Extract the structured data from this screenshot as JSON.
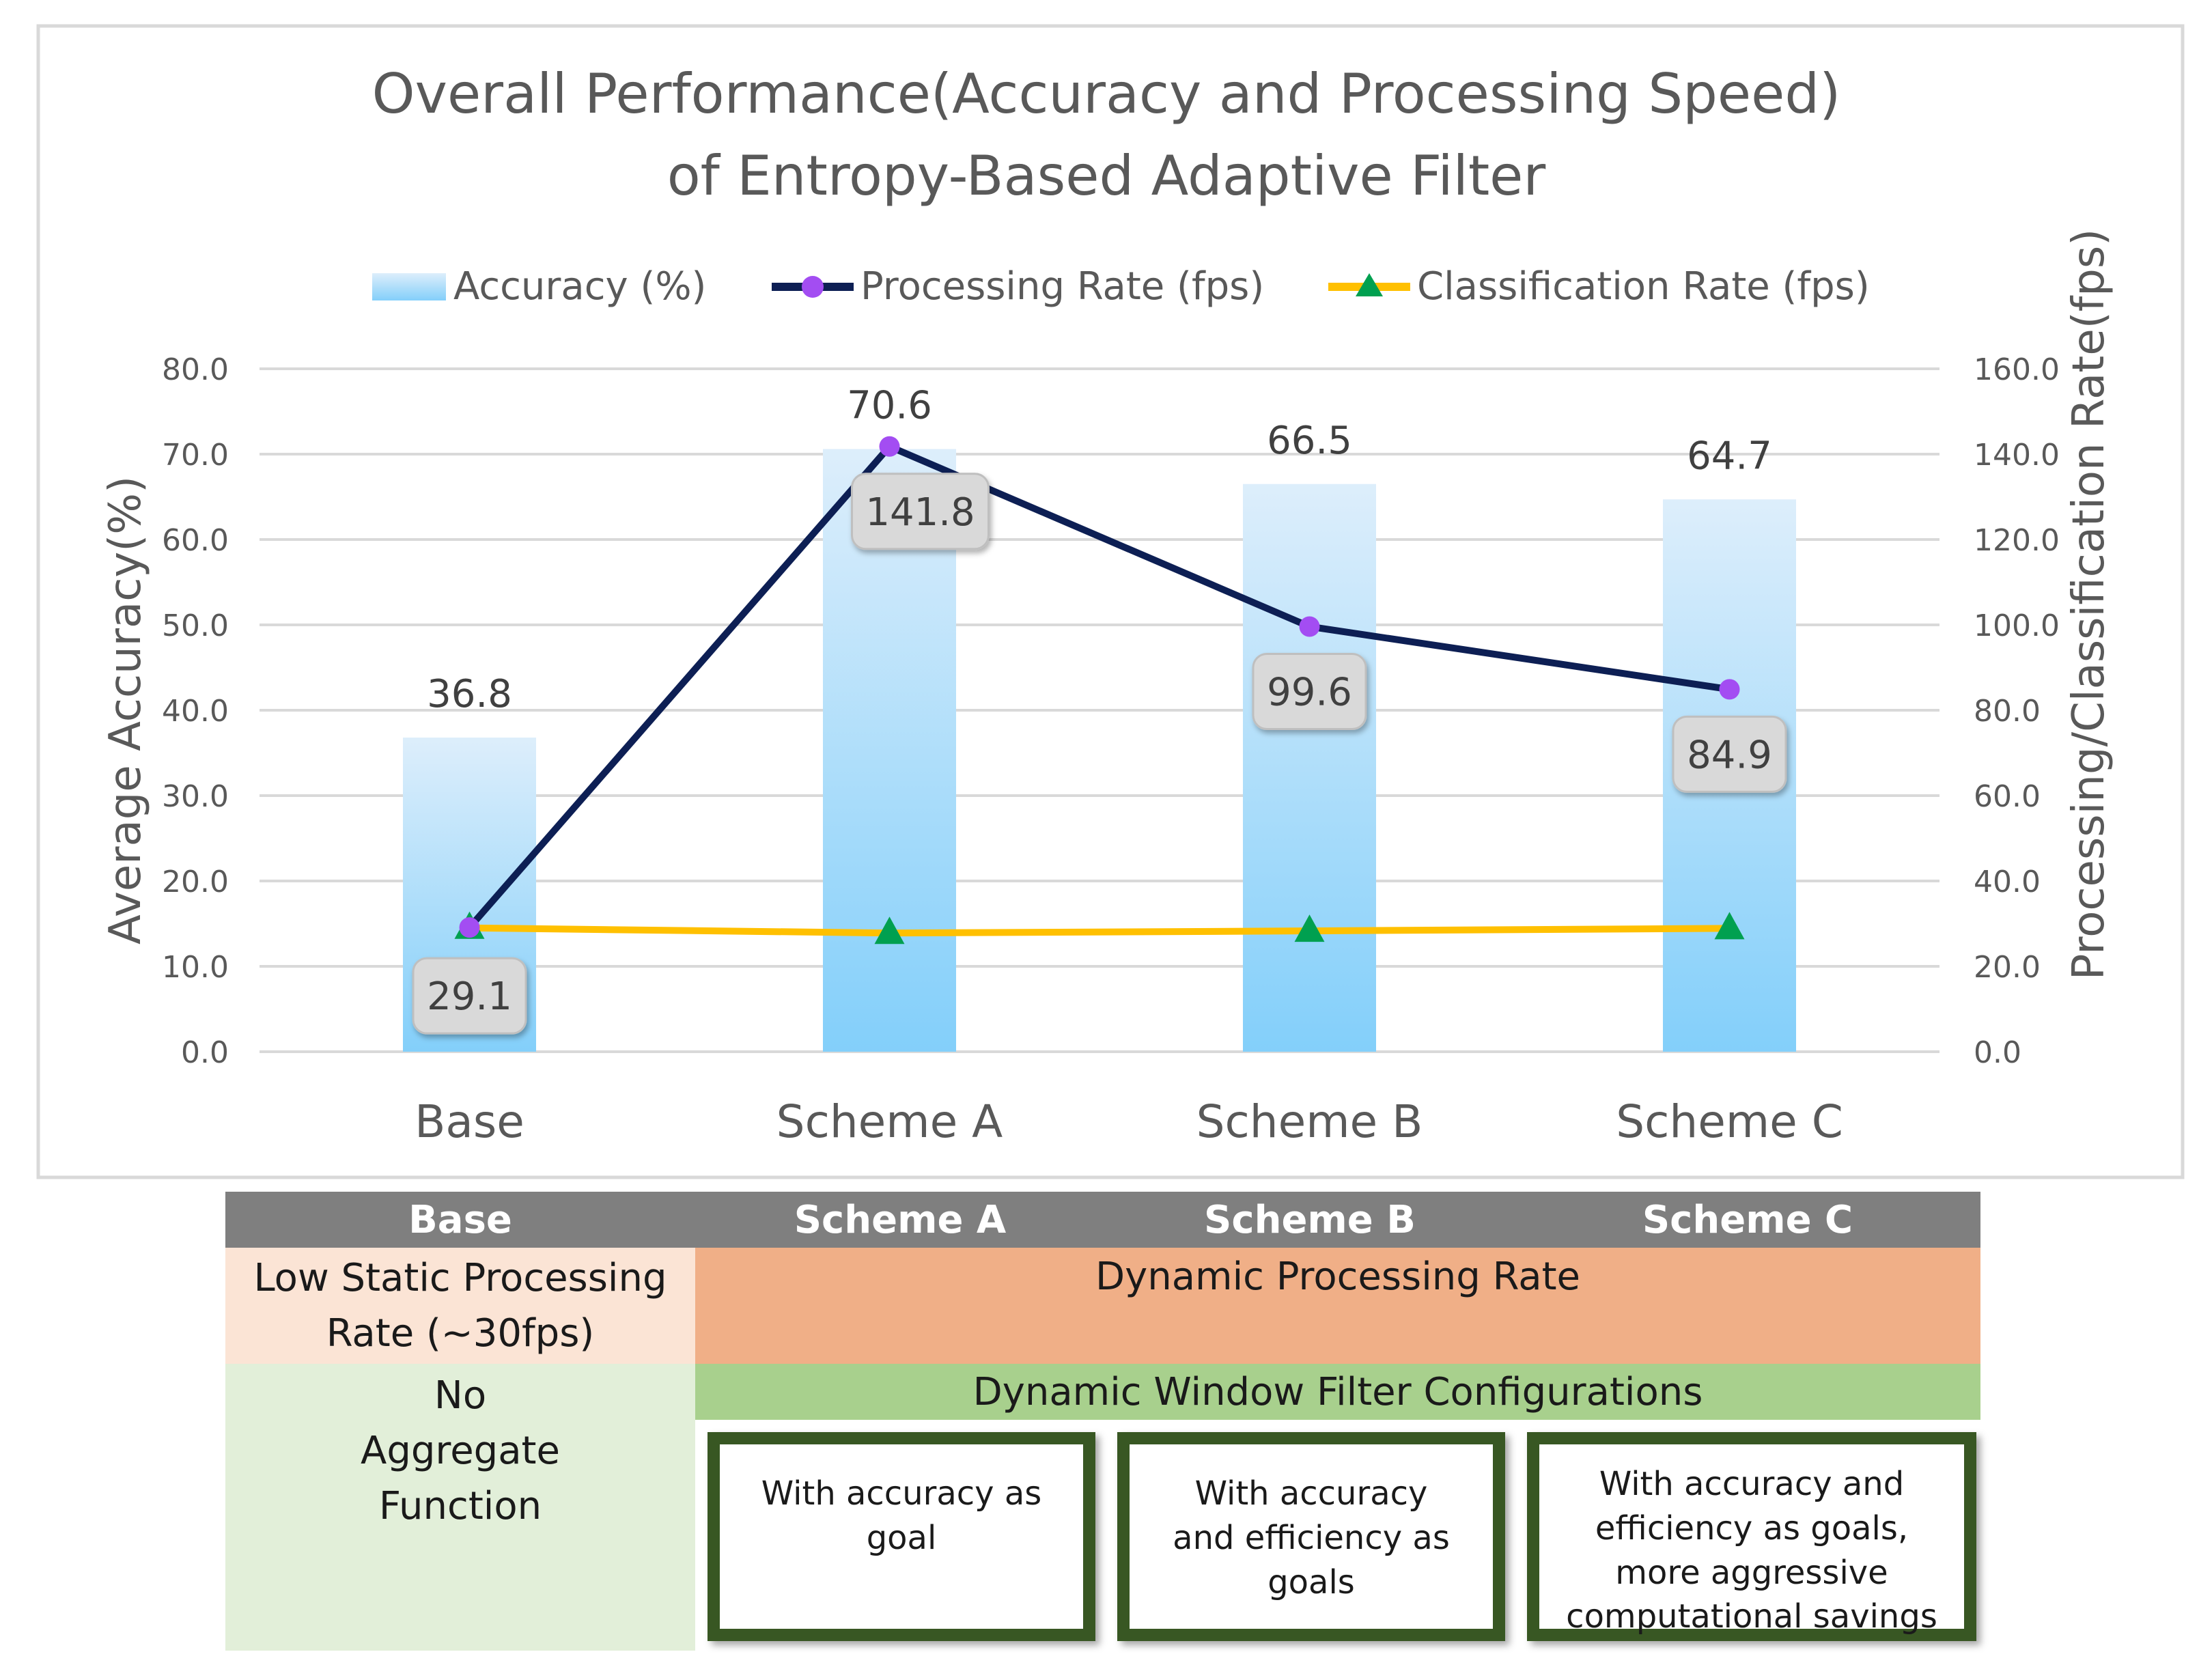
{
  "chart_data": {
    "type": "bar+line",
    "title": "Overall Performance(Accuracy and Processing Speed) of Entropy-Based Adaptive Filter",
    "title_lines": [
      "Overall Performance(Accuracy and Processing Speed)",
      "of Entropy-Based Adaptive Filter"
    ],
    "categories": [
      "Base",
      "Scheme A",
      "Scheme B",
      "Scheme C"
    ],
    "ylabel_left": "Average Accuracy(%)",
    "ylabel_right": "Processing/Classification Rate(fps)",
    "ylim_left": [
      0,
      80
    ],
    "ylim_right": [
      0,
      160
    ],
    "yticks_left": [
      "0.0",
      "10.0",
      "20.0",
      "30.0",
      "40.0",
      "50.0",
      "60.0",
      "70.0",
      "80.0"
    ],
    "yticks_right": [
      "0.0",
      "20.0",
      "40.0",
      "60.0",
      "80.0",
      "100.0",
      "120.0",
      "140.0",
      "160.0"
    ],
    "legend_position": "top",
    "series": [
      {
        "name": "Accuracy (%)",
        "type": "bar",
        "axis": "left",
        "values": [
          36.8,
          70.6,
          66.5,
          64.7
        ],
        "labels": [
          "36.8",
          "70.6",
          "66.5",
          "64.7"
        ]
      },
      {
        "name": "Processing Rate (fps)",
        "type": "line",
        "axis": "right",
        "values": [
          29.1,
          141.8,
          99.6,
          84.9
        ],
        "labels": [
          "29.1",
          "141.8",
          "99.6",
          "84.9"
        ]
      },
      {
        "name": "Classification Rate (fps)",
        "type": "line",
        "axis": "right",
        "values": [
          29.0,
          27.8,
          28.3,
          28.9
        ]
      }
    ],
    "colors": {
      "bar_top": "#ddeefb",
      "bar_bottom": "#83cffa",
      "processing_line": "#0d1f54",
      "processing_marker": "#a34df2",
      "classification_line": "#ffc000",
      "classification_marker": "#00a050",
      "grid": "#d9d9d9",
      "text": "#595959"
    }
  },
  "table": {
    "headers": [
      "Base",
      "Scheme A",
      "Scheme B",
      "Scheme C"
    ],
    "base_rate": "Low Static Processing Rate (~30fps)",
    "dynamic_rate": "Dynamic Processing Rate",
    "base_aggregate": "No Aggregate Function",
    "dynamic_window": "Dynamic Window Filter Configurations",
    "notes": [
      "With accuracy as goal",
      "With accuracy and efficiency as goals",
      "With accuracy and efficiency as goals, more aggressive computational savings"
    ],
    "colors": {
      "header": "#7f7f7f",
      "rate_base": "#fbe4d5",
      "rate_dynamic": "#f0af87",
      "agg_base": "#e2efd9",
      "window": "#a8d08d",
      "note_border": "#385723"
    }
  }
}
